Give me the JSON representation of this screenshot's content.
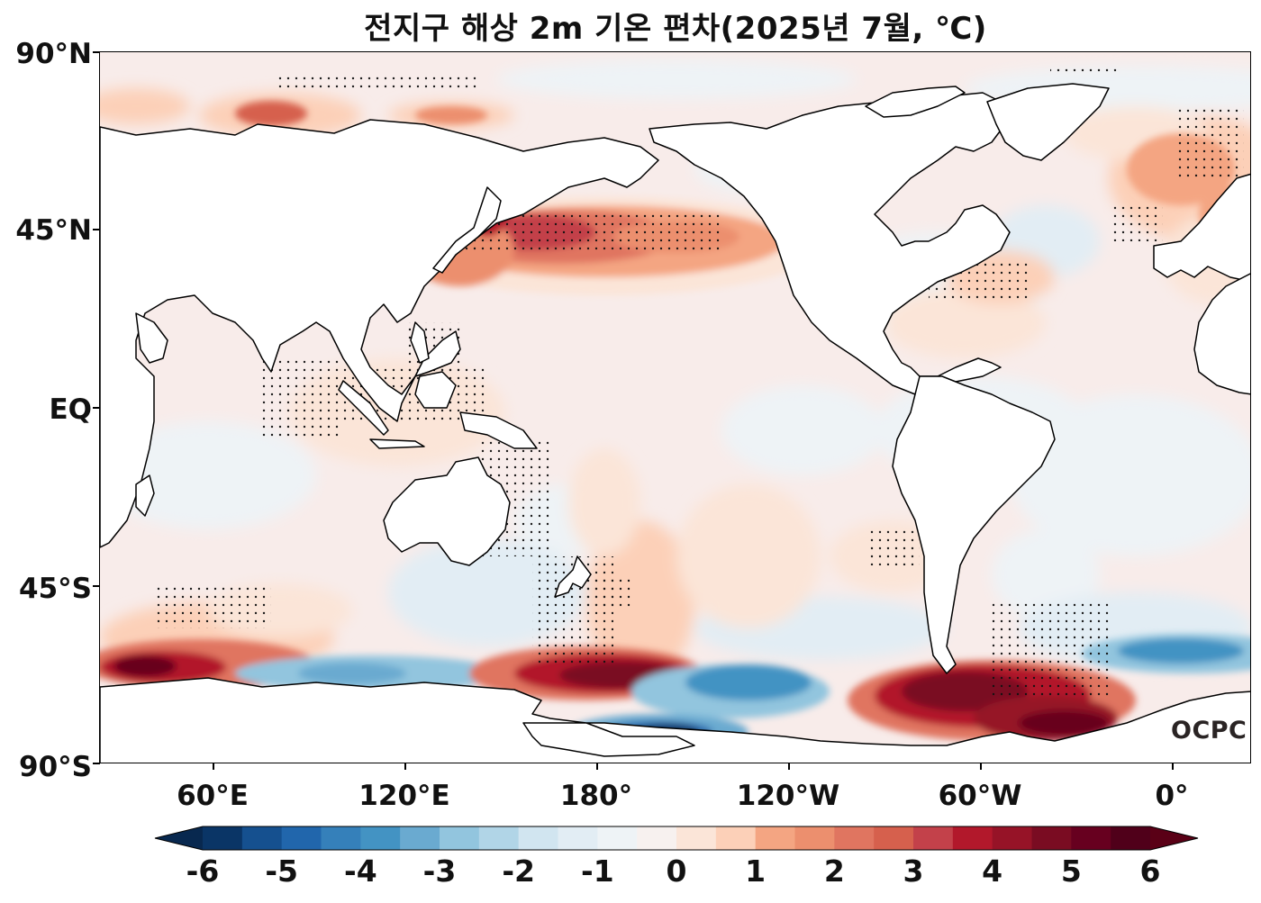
{
  "title": "전지구 해상 2m 기온 편차(2025년 7월, ℃)",
  "logo": "OCPC",
  "y_axis": {
    "labels": [
      "90°N",
      "45°N",
      "EQ",
      "45°S",
      "90°S"
    ],
    "latitudes": [
      90,
      45,
      0,
      -45,
      -90
    ]
  },
  "x_axis": {
    "labels": [
      "60°E",
      "120°E",
      "180°",
      "120°W",
      "60°W",
      "0°"
    ],
    "longitudes": [
      60,
      120,
      180,
      240,
      300,
      360
    ]
  },
  "colorbar": {
    "tick_labels": [
      "-6",
      "-5",
      "-4",
      "-3",
      "-2",
      "-1",
      "0",
      "1",
      "2",
      "3",
      "4",
      "5",
      "6"
    ],
    "levels": [
      -6,
      -5.5,
      -5,
      -4.5,
      -4,
      -3.5,
      -3,
      -2.5,
      -2,
      -1.5,
      -1,
      -0.5,
      0,
      0.5,
      1,
      1.5,
      2,
      2.5,
      3,
      3.5,
      4,
      4.5,
      5,
      5.5,
      6
    ],
    "colors": [
      "#0a3566",
      "#15508f",
      "#2166ac",
      "#3580ba",
      "#4393c3",
      "#6aaad0",
      "#92c5de",
      "#b1d5e7",
      "#d1e5f0",
      "#e2edf4",
      "#eef3f6",
      "#f7f1ef",
      "#fbe5d8",
      "#fcd0b8",
      "#f4a582",
      "#ec8f6e",
      "#e07560",
      "#d6604d",
      "#c3414a",
      "#b2182b",
      "#961327",
      "#7a0c22",
      "#67001f",
      "#50001a"
    ],
    "under_color": "#08284f",
    "over_color": "#5a0016"
  },
  "colors": {
    "land": "#ffffff",
    "coast": "#000000",
    "ocean_base": "#f8ecea"
  }
}
